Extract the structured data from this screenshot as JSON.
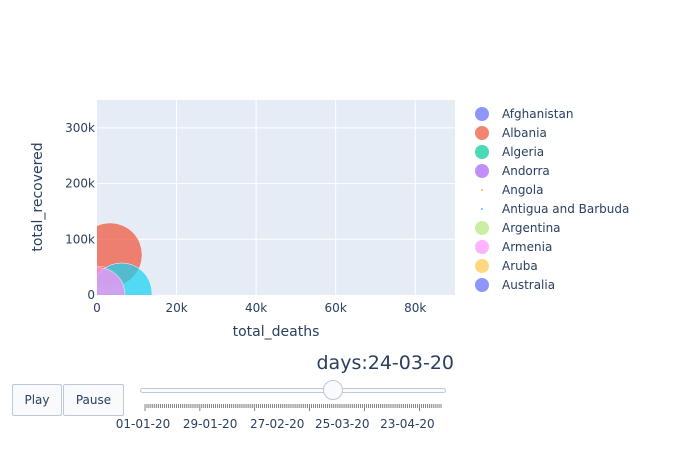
{
  "chart_data": {
    "type": "scatter",
    "xlabel": "total_deaths",
    "ylabel": "total_recovered",
    "xlim": [
      0,
      90000
    ],
    "ylim": [
      0,
      350000
    ],
    "x_ticks": [
      0,
      20000,
      40000,
      60000,
      80000
    ],
    "x_tick_labels": [
      "0",
      "20k",
      "40k",
      "60k",
      "80k"
    ],
    "y_ticks": [
      0,
      100000,
      200000,
      300000
    ],
    "y_tick_labels": [
      "0",
      "100k",
      "200k",
      "300k"
    ],
    "grid": true,
    "legend_placement": "right",
    "series": [
      {
        "name": "Afghanistan",
        "color": "#636efa",
        "points": []
      },
      {
        "name": "Albania",
        "color": "#EF553B",
        "points": [
          {
            "x": 3300,
            "y": 72000,
            "size": 1.0
          },
          {
            "x": 200,
            "y": 2000,
            "size": 0.75
          }
        ]
      },
      {
        "name": "Algeria",
        "color": "#00cc96",
        "points": []
      },
      {
        "name": "Andorra",
        "color": "#ab63fa",
        "points": []
      },
      {
        "name": "Angola",
        "color": "#FFA15A",
        "points": []
      },
      {
        "name": "Antigua and Barbuda",
        "color": "#19d3f3",
        "points": [
          {
            "x": 6200,
            "y": 3000,
            "size": 0.9
          }
        ]
      },
      {
        "name": "Argentina",
        "color": "#B6E880",
        "points": []
      },
      {
        "name": "Armenia",
        "color": "#FF97FF",
        "points": [
          {
            "x": 300,
            "y": 1000,
            "size": 0.7
          }
        ]
      },
      {
        "name": "Aruba",
        "color": "#FECB52",
        "points": []
      },
      {
        "name": "Australia",
        "color": "#636efa",
        "points": []
      }
    ]
  },
  "legend": [
    {
      "label": "Afghanistan",
      "color": "#636efa",
      "marker": "large"
    },
    {
      "label": "Albania",
      "color": "#EF553B",
      "marker": "large"
    },
    {
      "label": "Algeria",
      "color": "#00cc96",
      "marker": "large"
    },
    {
      "label": "Andorra",
      "color": "#ab63fa",
      "marker": "large"
    },
    {
      "label": "Angola",
      "color": "#FFA15A",
      "marker": "tiny"
    },
    {
      "label": "Antigua and Barbuda",
      "color": "#19d3f3",
      "marker": "tiny"
    },
    {
      "label": "Argentina",
      "color": "#B6E880",
      "marker": "large"
    },
    {
      "label": "Armenia",
      "color": "#FF97FF",
      "marker": "large"
    },
    {
      "label": "Aruba",
      "color": "#FECB52",
      "marker": "large"
    },
    {
      "label": "Australia",
      "color": "#636efa",
      "marker": "large"
    }
  ],
  "controls": {
    "play_label": "Play",
    "pause_label": "Pause"
  },
  "slider": {
    "prefix": "days:",
    "current_value": "24-03-20",
    "position_fraction": 0.635,
    "step_count": 152,
    "date_labels": [
      "01-01-20",
      "29-01-20",
      "27-02-20",
      "25-03-20",
      "23-04-20"
    ]
  }
}
